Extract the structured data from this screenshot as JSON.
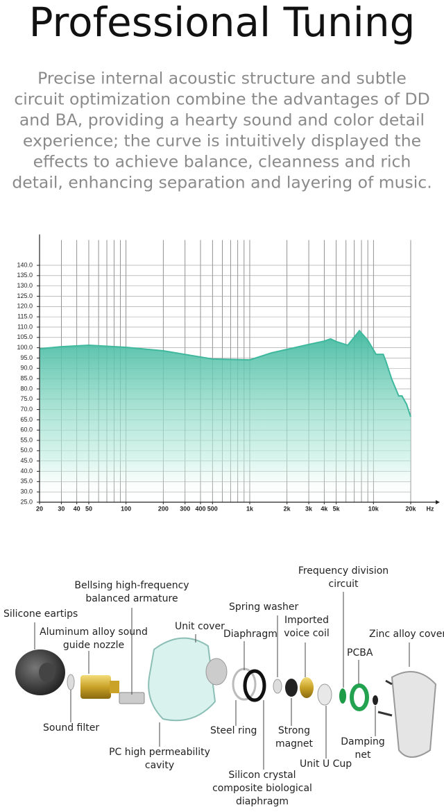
{
  "header": {
    "title": "Professional Tuning",
    "description": [
      "Precise internal acoustic structure and subtle",
      "circuit optimization combine the advantages of DD",
      "and BA, providing a hearty sound and color detail",
      "experience; the curve is intuitively displayed the",
      "effects to achieve balance, cleanness and rich",
      "detail, enhancing separation and layering of music."
    ]
  },
  "chart_data": {
    "type": "line",
    "log_x": true,
    "grid": true,
    "fill": true,
    "color": "#3fb89e",
    "x_unit": "Hz",
    "x": [
      20,
      30,
      50,
      100,
      200,
      500,
      1000,
      1500,
      2000,
      3000,
      4000,
      4500,
      5000,
      6200,
      7700,
      9000,
      10500,
      12000,
      12600,
      14000,
      16000,
      17000,
      18500,
      20000
    ],
    "values": [
      99.5,
      100.5,
      101.2,
      100.2,
      98.5,
      94.5,
      94.1,
      97.5,
      99.2,
      101.6,
      103.2,
      104.3,
      103,
      101.2,
      108.3,
      103.6,
      96.8,
      96.8,
      93.5,
      85,
      76.6,
      76.6,
      72.6,
      66.5
    ],
    "xlim": [
      20,
      20000
    ],
    "ylim": [
      25,
      155
    ],
    "xticks": [
      20,
      30,
      40,
      50,
      100,
      200,
      300,
      400,
      500,
      {
        "value": 1000,
        "label": "1k"
      },
      {
        "value": 2000,
        "label": "2k"
      },
      {
        "value": 3000,
        "label": "3k"
      },
      {
        "value": 4000,
        "label": "4k"
      },
      {
        "value": 5000,
        "label": "5k"
      },
      {
        "value": 10000,
        "label": "10k"
      },
      {
        "value": 20000,
        "label": "20k"
      }
    ],
    "yticks": [
      {
        "value": 25,
        "label": "25.0"
      },
      {
        "value": 30,
        "label": "30.0"
      },
      {
        "value": 35,
        "label": "35.0"
      },
      {
        "value": 40,
        "label": "40.0"
      },
      {
        "value": 45,
        "label": "45.0"
      },
      {
        "value": 50,
        "label": "50.0"
      },
      {
        "value": 55,
        "label": "55.0"
      },
      {
        "value": 60,
        "label": "60.0"
      },
      {
        "value": 65,
        "label": "65.0"
      },
      {
        "value": 70,
        "label": "70.0"
      },
      {
        "value": 75,
        "label": "75.0"
      },
      {
        "value": 80,
        "label": "80.0"
      },
      {
        "value": 85,
        "label": "85.0"
      },
      {
        "value": 90,
        "label": "90.0"
      },
      {
        "value": 95,
        "label": "95.0"
      },
      {
        "value": 100,
        "label": "100.0"
      },
      {
        "value": 105,
        "label": "105.0"
      },
      {
        "value": 110,
        "label": "110.0"
      },
      {
        "value": 115,
        "label": "115.0"
      },
      {
        "value": 120,
        "label": "120.0"
      },
      {
        "value": 125,
        "label": "125.0"
      },
      {
        "value": 130,
        "label": "130.0"
      },
      {
        "value": 135,
        "label": "135.0"
      },
      {
        "value": 140,
        "label": "140.0"
      }
    ]
  },
  "diagram": {
    "parts": [
      {
        "lines": [
          "Silicone eartips"
        ]
      },
      {
        "lines": [
          "Bellsing high-frequency",
          "balanced armature"
        ]
      },
      {
        "lines": [
          "Aluminum alloy sound",
          "guide nozzle"
        ]
      },
      {
        "lines": [
          "Unit cover"
        ]
      },
      {
        "lines": [
          "Spring washer"
        ]
      },
      {
        "lines": [
          "Diaphragm"
        ]
      },
      {
        "lines": [
          "Imported",
          "voice coil"
        ]
      },
      {
        "lines": [
          "Frequency division",
          "circuit"
        ]
      },
      {
        "lines": [
          "PCBA"
        ]
      },
      {
        "lines": [
          "Zinc alloy cover"
        ]
      },
      {
        "lines": [
          "Sound filter"
        ]
      },
      {
        "lines": [
          "PC high permeability",
          "cavity"
        ]
      },
      {
        "lines": [
          "Steel ring"
        ]
      },
      {
        "lines": [
          "Strong",
          "magnet"
        ]
      },
      {
        "lines": [
          "Damping",
          "net"
        ]
      },
      {
        "lines": [
          "Unit U Cup"
        ]
      },
      {
        "lines": [
          "Silicon crystal",
          "composite biological",
          "diaphragm"
        ]
      }
    ]
  }
}
